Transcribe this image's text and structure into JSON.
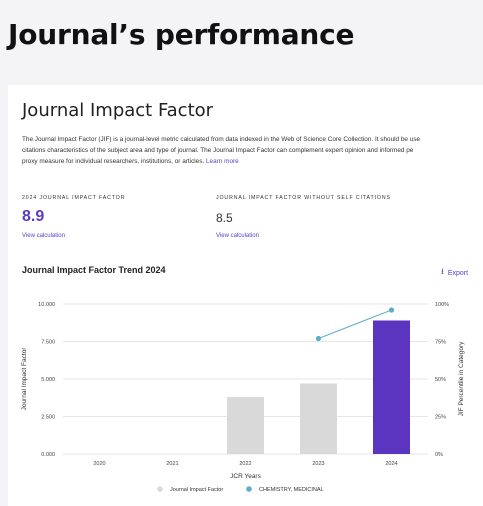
{
  "page": {
    "title": "Journal’s performance"
  },
  "jif": {
    "title": "Journal Impact Factor",
    "description": "The Journal Impact Factor (JIF) is a journal-level metric calculated from data indexed in the Web of Science Core Collection. It should be use",
    "description_line2": "citations characteristics of the subject area and type of journal. The Journal Impact Factor can complement expert opinion and informed pe",
    "description_line3": "proxy measure for individual researchers, institutions, or articles.",
    "learn_more": "Learn more",
    "metrics": [
      {
        "label": "2024 JOURNAL IMPACT FACTOR",
        "value": "8.9",
        "link": "View calculation"
      },
      {
        "label": "JOURNAL IMPACT FACTOR WITHOUT SELF CITATIONS",
        "value": "8.5",
        "link": "View calculation"
      }
    ]
  },
  "trend": {
    "title": "Journal Impact Factor Trend 2024",
    "export_label": "Export",
    "export_icon": "download-icon"
  },
  "chart_data": {
    "type": "bar",
    "categories": [
      "2020",
      "2021",
      "2022",
      "2023",
      "2024"
    ],
    "series": [
      {
        "name": "Journal Impact Factor",
        "values": [
          null,
          null,
          3.8,
          4.7,
          8.9
        ],
        "axis": "left"
      },
      {
        "name": "CHEMISTRY, MEDICINAL",
        "values": [
          null,
          null,
          null,
          77,
          96
        ],
        "axis": "right",
        "type": "line"
      }
    ],
    "highlight_category": "2024",
    "colors": {
      "bar": "#d9d9d9",
      "bar_highlight": "#5b35c0",
      "line": "#5aaec6",
      "grid": "#e6e6e6"
    },
    "xlabel": "JCR Years",
    "ylabel": "Journal Impact Factor",
    "y2label": "JIF Percentile in Category",
    "ylim": [
      0,
      10
    ],
    "y2lim": [
      0,
      100
    ],
    "yticks": [
      "0.000",
      "2.500",
      "5.000",
      "7.500",
      "10.000"
    ],
    "y2ticks": [
      "0%",
      "25%",
      "50%",
      "75%",
      "100%"
    ],
    "legend_position": "bottom"
  }
}
